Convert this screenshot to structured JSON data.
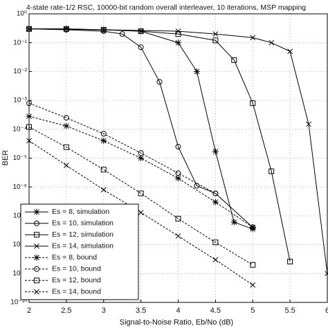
{
  "chart_data": {
    "type": "line",
    "title": "4-state rate-1/2 RSC, 10000-bit random overall interleaver, 10 iterations, MSP mapping",
    "x_label": "Signal-to-Noise Ratio, Eb/No (dB)",
    "y_label": "BER",
    "log_y": true,
    "grid": true,
    "legend": "lower left",
    "xlim": [
      2,
      6
    ],
    "xticks": [
      2,
      2.5,
      3,
      3.5,
      4,
      4.5,
      5,
      5.5,
      6
    ],
    "ylim": [
      1e-10,
      1
    ],
    "yticks": [
      {
        "value": 1e-10,
        "label": "10⁻¹⁰"
      },
      {
        "value": 1e-09,
        "label": "10⁻⁹"
      },
      {
        "value": 1e-08,
        "label": "10⁻⁸"
      },
      {
        "value": 1e-07,
        "label": "10⁻⁷"
      },
      {
        "value": 1e-06,
        "label": "10⁻⁶"
      },
      {
        "value": 1e-05,
        "label": "10⁻⁵"
      },
      {
        "value": 0.0001,
        "label": "10⁻⁴"
      },
      {
        "value": 0.001,
        "label": "10⁻³"
      },
      {
        "value": 0.01,
        "label": "10⁻²"
      },
      {
        "value": 0.1,
        "label": "10⁻¹"
      },
      {
        "value": 1,
        "label": "10⁰"
      }
    ],
    "series": [
      {
        "name": "Es = 8, simulation",
        "color": "#000000",
        "marker": "star",
        "dashed": false,
        "x": [
          2,
          2.5,
          3,
          3.5,
          4,
          4.25,
          4.5,
          4.75,
          5
        ],
        "values": [
          0.3,
          0.3,
          0.28,
          0.25,
          0.1,
          0.01,
          1.7e-05,
          6e-08,
          3.5e-08
        ]
      },
      {
        "name": "Es = 10, simulation",
        "color": "#000000",
        "marker": "circle",
        "dashed": false,
        "x": [
          2,
          2.5,
          3,
          3.25,
          3.5,
          3.75,
          4,
          4.25,
          4.5,
          5
        ],
        "values": [
          0.3,
          0.28,
          0.25,
          0.2,
          0.07,
          0.0044,
          2.5e-05,
          1.1e-06,
          6e-07,
          4e-08
        ]
      },
      {
        "name": "Es = 12, simulation",
        "color": "#000000",
        "marker": "square",
        "dashed": false,
        "x": [
          2,
          2.5,
          3,
          3.5,
          4,
          4.5,
          4.75,
          5,
          5.25,
          5.5
        ],
        "values": [
          0.3,
          0.3,
          0.28,
          0.25,
          0.2,
          0.12,
          0.025,
          0.0008,
          3.5e-06,
          2.6e-09
        ]
      },
      {
        "name": "Es = 14, simulation",
        "color": "#000000",
        "marker": "x",
        "dashed": false,
        "x": [
          2,
          3,
          4,
          4.5,
          5,
          5.25,
          5.5,
          5.75,
          6
        ],
        "values": [
          0.3,
          0.28,
          0.25,
          0.2,
          0.15,
          0.1,
          0.05,
          0.00015,
          1e-09
        ]
      },
      {
        "name": "Es = 8, bound",
        "color": "#000000",
        "marker": "star",
        "dashed": true,
        "x": [
          2,
          2.5,
          3,
          3.5,
          4,
          4.5,
          5
        ],
        "values": [
          0.00028,
          0.00013,
          4e-05,
          1e-05,
          2e-06,
          3e-07,
          4e-08
        ]
      },
      {
        "name": "Es = 10, bound",
        "color": "#000000",
        "marker": "circle",
        "dashed": true,
        "x": [
          2,
          2.5,
          3,
          3.5,
          4,
          4.5
        ],
        "values": [
          0.0008,
          0.00025,
          7e-05,
          1.5e-05,
          3e-06,
          6e-07
        ]
      },
      {
        "name": "Es = 12, bound",
        "color": "#000000",
        "marker": "square",
        "dashed": true,
        "x": [
          2,
          2.5,
          3,
          3.5,
          4,
          4.5,
          5
        ],
        "values": [
          0.00012,
          2.4e-05,
          4e-06,
          6e-07,
          8e-08,
          1.2e-08,
          2e-09
        ]
      },
      {
        "name": "Es = 14, bound",
        "color": "#000000",
        "marker": "x",
        "dashed": true,
        "x": [
          2,
          2.5,
          3,
          3.5,
          4,
          4.5,
          5
        ],
        "values": [
          4e-05,
          5.6e-06,
          8e-07,
          1.3e-07,
          2e-08,
          3e-09,
          4e-10
        ]
      }
    ]
  }
}
